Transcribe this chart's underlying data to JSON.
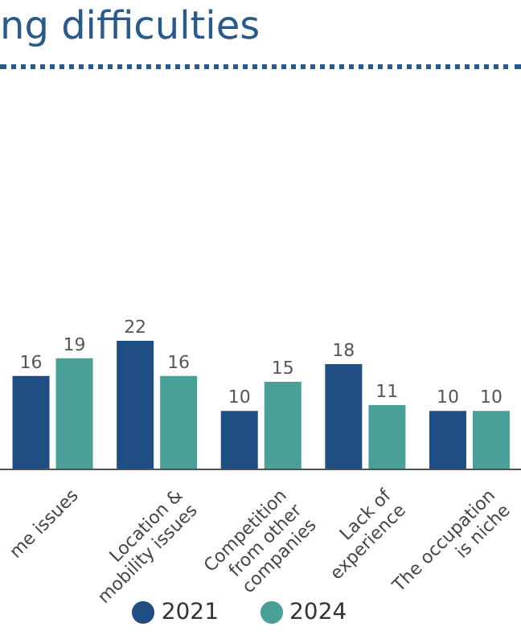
{
  "chart_data": {
    "type": "bar",
    "title": "ng difficulties",
    "categories": [
      "me issues",
      "Location &\nmobility issues",
      "Competition\nfrom other\ncompanies",
      "Lack of\nexperience",
      "The occupation\nis niche"
    ],
    "series": [
      {
        "name": "2021",
        "color": "#1f4e82",
        "values": [
          16,
          22,
          10,
          18,
          10
        ]
      },
      {
        "name": "2024",
        "color": "#48a096",
        "values": [
          19,
          16,
          15,
          11,
          10
        ]
      }
    ],
    "data_labels": true,
    "grid": false,
    "legend": "bottom"
  }
}
